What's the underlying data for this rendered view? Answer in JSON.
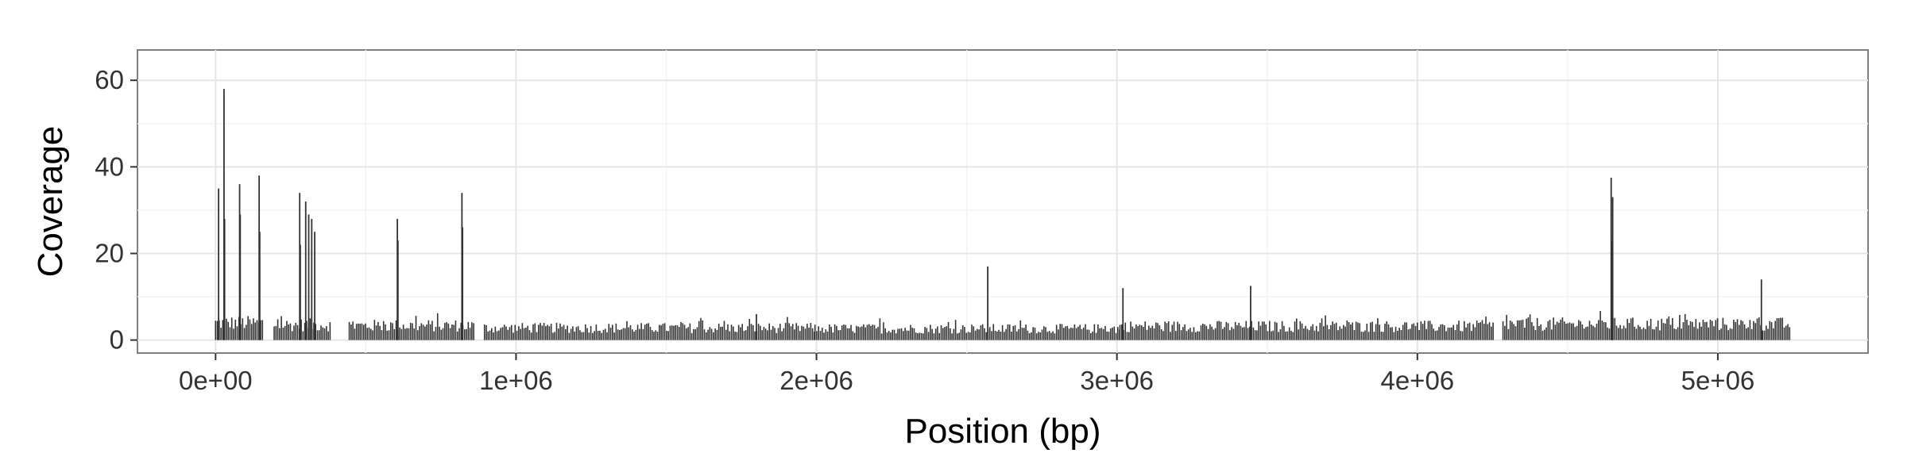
{
  "chart_data": {
    "type": "bar",
    "title": "",
    "xlabel": "Position (bp)",
    "ylabel": "Coverage",
    "xlim": [
      -260000,
      5500000
    ],
    "ylim": [
      -3,
      67
    ],
    "x_ticks": [
      {
        "value": 0,
        "label": "0e+00"
      },
      {
        "value": 1000000,
        "label": "1e+06"
      },
      {
        "value": 2000000,
        "label": "2e+06"
      },
      {
        "value": 3000000,
        "label": "3e+06"
      },
      {
        "value": 4000000,
        "label": "4e+06"
      },
      {
        "value": 5000000,
        "label": "5e+06"
      }
    ],
    "y_ticks": [
      {
        "value": 0,
        "label": "0"
      },
      {
        "value": 20,
        "label": "20"
      },
      {
        "value": 40,
        "label": "40"
      },
      {
        "value": 60,
        "label": "60"
      }
    ],
    "grid": true,
    "background_style": "white panel with light grey grid",
    "bar_color": "#333333",
    "regions": [
      {
        "start": 0,
        "end": 160000,
        "typical": 4.5
      },
      {
        "start": 195000,
        "end": 385000,
        "typical": 4.0
      },
      {
        "start": 445000,
        "end": 860000,
        "typical": 3.8
      },
      {
        "start": 895000,
        "end": 1995000,
        "typical": 3.2
      },
      {
        "start": 1995000,
        "end": 3010000,
        "typical": 3.0
      },
      {
        "start": 3010000,
        "end": 4255000,
        "typical": 3.6
      },
      {
        "start": 4285000,
        "end": 5240000,
        "typical": 4.2
      }
    ],
    "peaks": [
      {
        "x": 10000,
        "y": 35
      },
      {
        "x": 28000,
        "y": 58
      },
      {
        "x": 30000,
        "y": 28
      },
      {
        "x": 80000,
        "y": 36
      },
      {
        "x": 82000,
        "y": 29
      },
      {
        "x": 145000,
        "y": 38
      },
      {
        "x": 147000,
        "y": 25
      },
      {
        "x": 280000,
        "y": 34
      },
      {
        "x": 282000,
        "y": 22
      },
      {
        "x": 300000,
        "y": 32
      },
      {
        "x": 310000,
        "y": 29
      },
      {
        "x": 320000,
        "y": 28
      },
      {
        "x": 330000,
        "y": 25
      },
      {
        "x": 605000,
        "y": 28
      },
      {
        "x": 607000,
        "y": 23
      },
      {
        "x": 820000,
        "y": 34
      },
      {
        "x": 822000,
        "y": 26
      },
      {
        "x": 1800000,
        "y": 6
      },
      {
        "x": 2570000,
        "y": 17
      },
      {
        "x": 3020000,
        "y": 12
      },
      {
        "x": 3445000,
        "y": 12.5
      },
      {
        "x": 4645000,
        "y": 37.5
      },
      {
        "x": 4648000,
        "y": 23
      },
      {
        "x": 4650000,
        "y": 33
      },
      {
        "x": 5145000,
        "y": 14
      }
    ]
  }
}
